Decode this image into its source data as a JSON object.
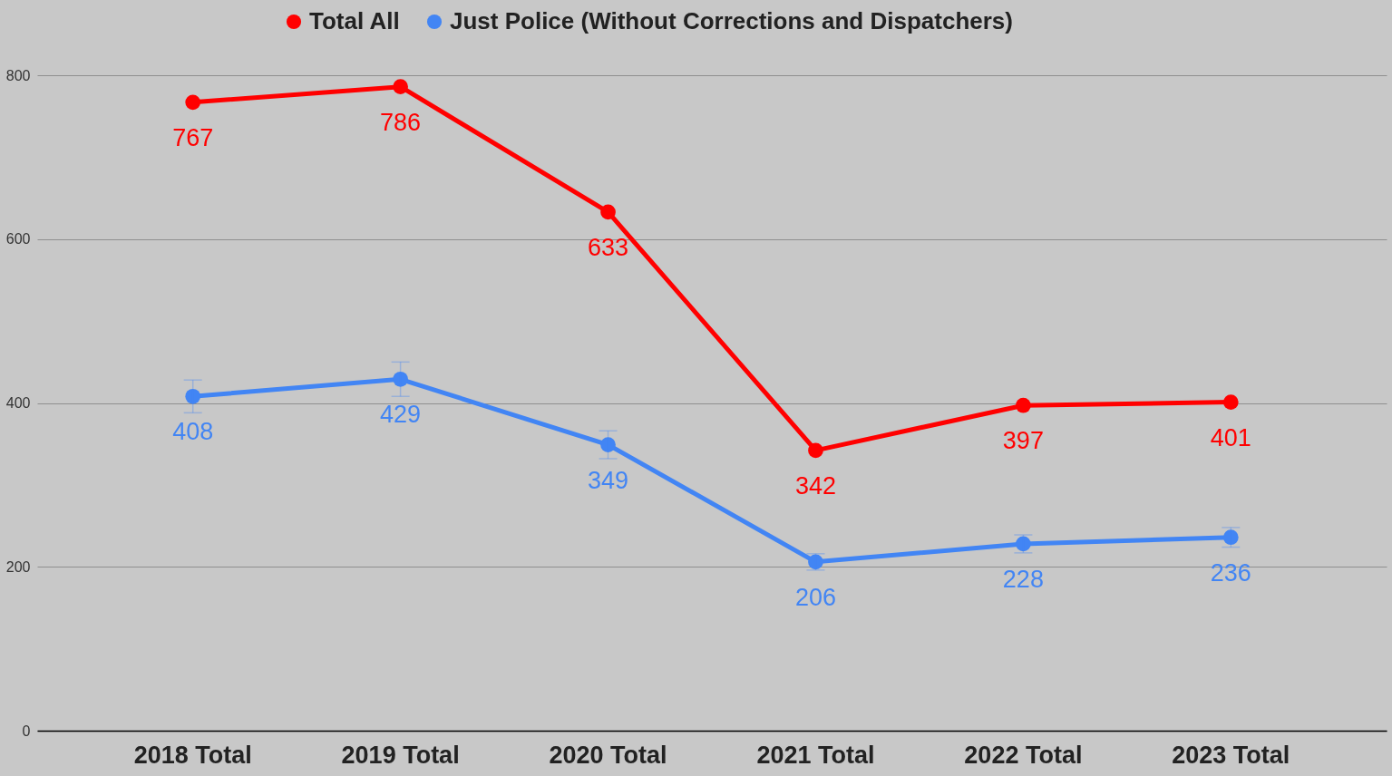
{
  "chart_data": {
    "type": "line",
    "categories": [
      "2018 Total",
      "2019 Total",
      "2020 Total",
      "2021 Total",
      "2022 Total",
      "2023 Total"
    ],
    "series": [
      {
        "name": "Total All",
        "color": "#ff0000",
        "values": [
          767,
          786,
          633,
          342,
          397,
          401
        ]
      },
      {
        "name": "Just Police (Without Corrections and Dispatchers)",
        "color": "#4285f4",
        "values": [
          408,
          429,
          349,
          206,
          228,
          236
        ],
        "errors": [
          20,
          21,
          17,
          10,
          11,
          12
        ]
      }
    ],
    "ylim": [
      0,
      800
    ],
    "yticks": [
      0,
      200,
      400,
      600,
      800
    ],
    "grid": "y",
    "legend": "top",
    "marker": "circle",
    "line_style": "solid",
    "data_labels": true
  }
}
